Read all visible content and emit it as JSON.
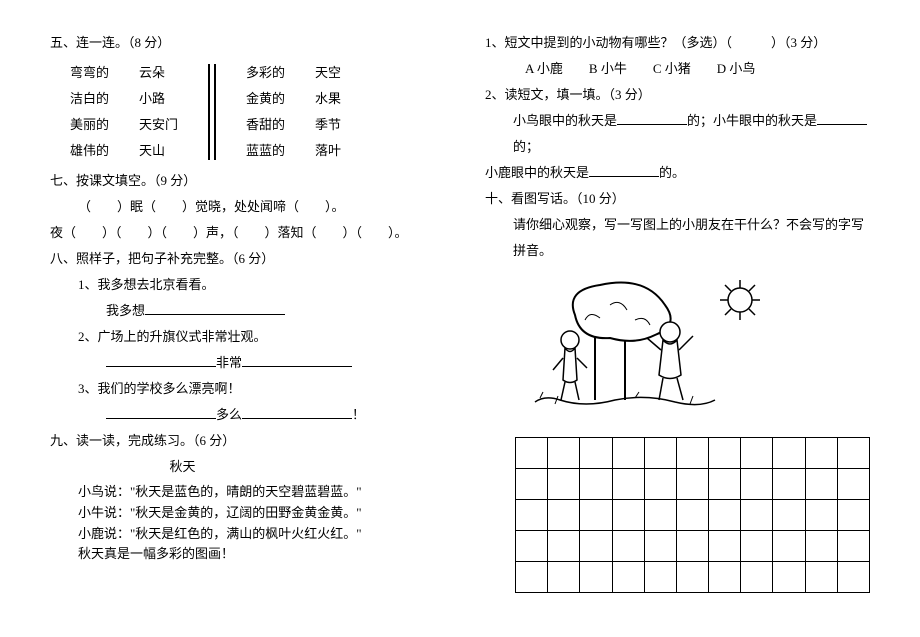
{
  "left": {
    "q5_title": "五、连一连。（8 分）",
    "q5_colA": [
      "弯弯的",
      "洁白的",
      "美丽的",
      "雄伟的"
    ],
    "q5_colB": [
      "云朵",
      "小路",
      "天安门",
      "天山"
    ],
    "q5_colC": [
      "多彩的",
      "金黄的",
      "香甜的",
      "蓝蓝的"
    ],
    "q5_colD": [
      "天空",
      "水果",
      "季节",
      "落叶"
    ],
    "q7_title": "七、按课文填空。（9 分）",
    "q7_l1_a": "（　　）眠（　　）觉晓，处处闻啼（　　）。",
    "q7_l2_a": "夜（　　）（　　）（　　）声，（　　）落知（　　）（　　）。",
    "q8_title": "八、照样子，把句子补充完整。（6 分）",
    "q8_1": "1、我多想去北京看看。",
    "q8_1b_pre": "我多想",
    "q8_2": "2、广场上的升旗仪式非常壮观。",
    "q8_2b_mid": "非常",
    "q8_3": "3、我们的学校多么漂亮啊！",
    "q8_3b_mid": "多么",
    "q8_3b_end": "！",
    "q9_title": "九、读一读，完成练习。（6 分）",
    "q9_poem_title": "秋天",
    "q9_l1": "小鸟说：\"秋天是蓝色的，晴朗的天空碧蓝碧蓝。\"",
    "q9_l2": "小牛说：\"秋天是金黄的，辽阔的田野金黄金黄。\"",
    "q9_l3": "小鹿说：\"秋天是红色的，满山的枫叶火红火红。\"",
    "q9_l4": "秋天真是一幅多彩的图画！"
  },
  "right": {
    "r1": "1、短文中提到的小动物有哪些？（多选）（　　　）（3 分）",
    "r1_opts": "A 小鹿　　B 小牛　　C 小猪　　D 小鸟",
    "r2": "2、读短文，填一填。（3 分）",
    "r2_l_a": "小鸟眼中的秋天是",
    "r2_l_b": "的；小牛眼中的秋天是",
    "r2_l_c": "的；",
    "r2_l2_a": "小鹿眼中的秋天是",
    "r2_l2_b": "的。",
    "q10_title": "十、看图写话。（10 分）",
    "q10_desc": "请你细心观察，写一写图上的小朋友在干什么？不会写的字写拼音。"
  },
  "grid": {
    "rows": 5,
    "cols": 11
  }
}
